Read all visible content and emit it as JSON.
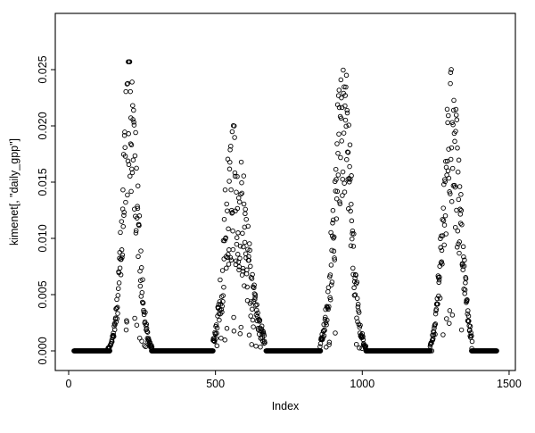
{
  "figure": {
    "background": "#ffffff",
    "foreground": "#000000"
  },
  "chart_data": {
    "type": "scatter",
    "title": "",
    "xlabel": "Index",
    "ylabel": "kimenet[, \"daily_gpp\"]",
    "x_range": [
      0,
      1500
    ],
    "y_range": [
      0,
      0.025
    ],
    "grid": false,
    "legend": "none",
    "x_ticks": {
      "values": [
        0,
        500,
        1000,
        1500
      ],
      "labels": [
        "0",
        "500",
        "1000",
        "1500"
      ]
    },
    "y_ticks": {
      "values": [
        0,
        0.005,
        0.01,
        0.015,
        0.02,
        0.025
      ],
      "labels": [
        "0.000",
        "0.005",
        "0.010",
        "0.015",
        "0.020",
        "0.025"
      ]
    },
    "marker": {
      "shape": "open-circle",
      "color": "#000000",
      "radius_px": 2.3
    },
    "seed": 1234,
    "zero_segments": [
      [
        18,
        140
      ],
      [
        282,
        492
      ],
      [
        672,
        858
      ],
      [
        1012,
        1232
      ],
      [
        1372,
        1458
      ]
    ],
    "seasons": [
      {
        "x_start": 128,
        "x_end": 284,
        "peak_x": 208,
        "peak_y": 0.0255,
        "sigma_left": 24,
        "sigma_right": 26,
        "noise_min": 0.55,
        "noise_span": 0.5
      },
      {
        "x_start": 492,
        "x_end": 668,
        "peak_x": 555,
        "peak_y": 0.0205,
        "sigma_left": 26,
        "sigma_right": 48,
        "noise_min": 0.4,
        "noise_span": 0.65
      },
      {
        "x_start": 856,
        "x_end": 1012,
        "peak_x": 935,
        "peak_y": 0.0253,
        "sigma_left": 30,
        "sigma_right": 27,
        "noise_min": 0.5,
        "noise_span": 0.55
      },
      {
        "x_start": 1230,
        "x_end": 1374,
        "peak_x": 1302,
        "peak_y": 0.0247,
        "sigma_left": 26,
        "sigma_right": 30,
        "noise_min": 0.5,
        "noise_span": 0.55
      }
    ]
  }
}
